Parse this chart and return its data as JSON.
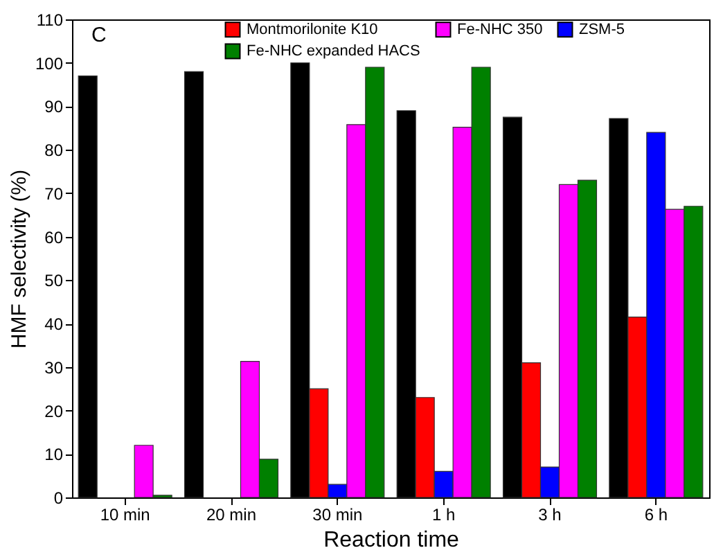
{
  "chart_data": {
    "type": "bar",
    "xlabel": "Reaction time",
    "ylabel": "HMF selectivity (%)",
    "annotations": [
      "C"
    ],
    "categories": [
      "10 min",
      "20 min",
      "30 min",
      "1 h",
      "3 h",
      "6 h"
    ],
    "series": [
      {
        "color": "#000000",
        "values": [
          97,
          98,
          100,
          89,
          87.5,
          87.2
        ]
      },
      {
        "name": "Montmorilonite K10",
        "color": "#ff0000",
        "values": [
          null,
          null,
          25,
          23,
          31,
          41.5
        ]
      },
      {
        "name": "ZSM-5",
        "color": "#0000ff",
        "values": [
          null,
          null,
          3,
          6,
          7,
          84
        ]
      },
      {
        "name": "Fe-NHC 350",
        "color": "#ff00ff",
        "values": [
          12,
          31.3,
          85.8,
          85.2,
          72,
          66.3
        ]
      },
      {
        "name": "Fe-NHC expanded HACS",
        "color": "#008000",
        "values": [
          0.5,
          8.8,
          99,
          99,
          73,
          67
        ]
      }
    ],
    "ylim": [
      0,
      110
    ],
    "yticks": [
      0,
      10,
      20,
      30,
      40,
      50,
      60,
      70,
      80,
      90,
      100,
      110
    ],
    "grid": false,
    "legend": "top"
  }
}
